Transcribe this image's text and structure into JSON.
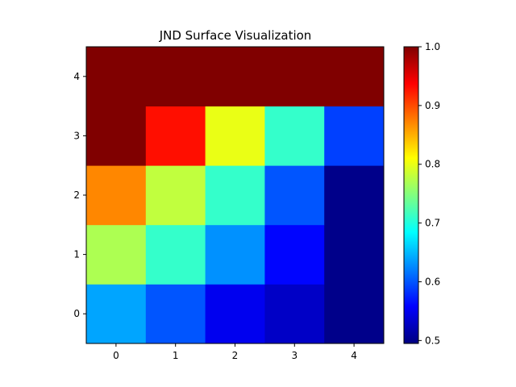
{
  "chart_data": {
    "type": "heatmap",
    "title": "JND Surface Visualization",
    "xlabel": "",
    "ylabel": "",
    "x": [
      0,
      1,
      2,
      3,
      4
    ],
    "y": [
      0,
      1,
      2,
      3,
      4
    ],
    "xlim": [
      -0.5,
      4.5
    ],
    "ylim": [
      -0.5,
      4.5
    ],
    "origin": "lower",
    "colormap": "jet",
    "colorbar": {
      "vmin": 0.495,
      "vmax": 1.0,
      "ticks": [
        "0.5",
        "0.6",
        "0.7",
        "0.8",
        "0.9",
        "1.0"
      ]
    },
    "grid": false,
    "values": [
      [
        0.64,
        0.6,
        0.55,
        0.53,
        0.5
      ],
      [
        0.77,
        0.71,
        0.63,
        0.56,
        0.5
      ],
      [
        0.87,
        0.78,
        0.71,
        0.6,
        0.5
      ],
      [
        1.0,
        0.93,
        0.8,
        0.71,
        0.59
      ],
      [
        1.0,
        1.0,
        1.0,
        1.0,
        1.0
      ]
    ]
  }
}
